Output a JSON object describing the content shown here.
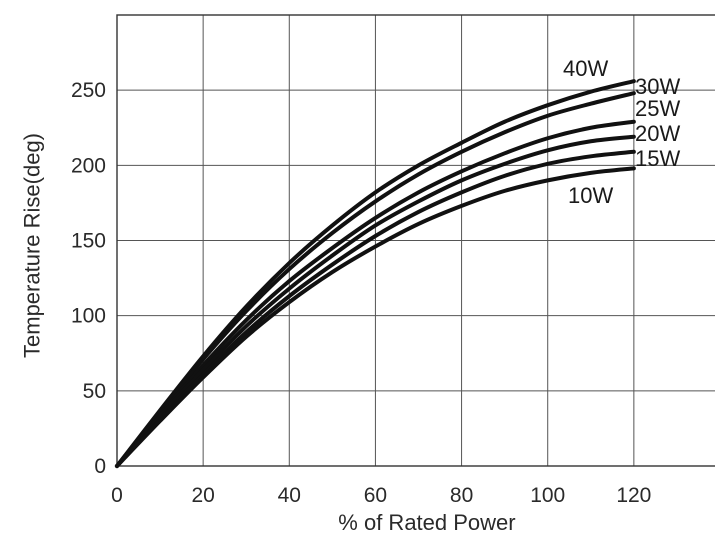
{
  "chart_data": {
    "type": "line",
    "xlabel": "% of Rated Power",
    "ylabel": "Temperature Rise(deg)",
    "xlim": [
      0,
      140
    ],
    "ylim": [
      0,
      300
    ],
    "grid": true,
    "x_ticks": [
      "0",
      "20",
      "40",
      "60",
      "80",
      "100",
      "120"
    ],
    "y_ticks": [
      "0",
      "50",
      "100",
      "150",
      "200",
      "250"
    ],
    "x": [
      0,
      10,
      20,
      30,
      40,
      50,
      60,
      70,
      80,
      90,
      100,
      110,
      120
    ],
    "series": [
      {
        "name": "40W",
        "values": [
          0,
          37,
          73,
          106,
          135,
          160,
          182,
          200,
          215,
          229,
          240,
          249,
          256
        ]
      },
      {
        "name": "30W",
        "values": [
          0,
          36,
          71,
          103,
          131,
          155,
          176,
          194,
          209,
          222,
          233,
          241,
          248
        ]
      },
      {
        "name": "25W",
        "values": [
          0,
          34,
          67,
          97,
          123,
          145,
          165,
          182,
          196,
          208,
          218,
          225,
          229
        ]
      },
      {
        "name": "20W",
        "values": [
          0,
          33,
          64,
          93,
          118,
          140,
          160,
          176,
          190,
          201,
          210,
          216,
          219
        ]
      },
      {
        "name": "15W",
        "values": [
          0,
          31,
          61,
          89,
          113,
          134,
          153,
          169,
          182,
          193,
          201,
          206,
          209
        ]
      },
      {
        "name": "10W",
        "values": [
          0,
          30,
          59,
          86,
          109,
          129,
          146,
          161,
          173,
          183,
          190,
          195,
          198
        ]
      }
    ]
  }
}
